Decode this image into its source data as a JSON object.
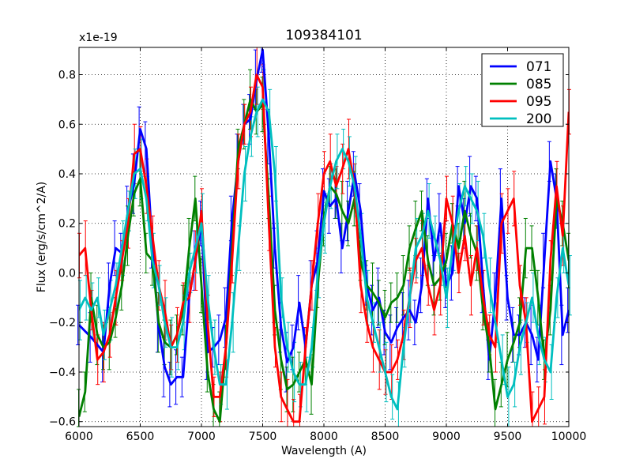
{
  "chart_data": {
    "type": "line",
    "title": "109384101",
    "xlabel": "Wavelength (A)",
    "ylabel": "Flux (erg/s/cm^2/A)",
    "offset_label": "x1e-19",
    "xlim": [
      6000,
      10000
    ],
    "ylim": [
      -0.62,
      0.91
    ],
    "xticks": [
      6000,
      6500,
      7000,
      7500,
      8000,
      8500,
      9000,
      9500,
      10000
    ],
    "yticks": [
      -0.6,
      -0.4,
      -0.2,
      0.0,
      0.2,
      0.4,
      0.6,
      0.8
    ],
    "xtick_labels": [
      "6000",
      "6500",
      "7000",
      "7500",
      "8000",
      "8500",
      "9000",
      "9500",
      "10000"
    ],
    "ytick_labels": [
      "−0.6",
      "−0.4",
      "−0.2",
      "0.0",
      "0.2",
      "0.4",
      "0.6",
      "0.8"
    ],
    "grid": true,
    "legend_position": "top-right",
    "series": [
      {
        "name": "071",
        "color": "#0000ff",
        "x": [
          6000,
          6100,
          6200,
          6250,
          6300,
          6350,
          6400,
          6450,
          6500,
          6550,
          6600,
          6650,
          6700,
          6750,
          6800,
          6850,
          6900,
          6950,
          7000,
          7050,
          7100,
          7150,
          7200,
          7250,
          7300,
          7350,
          7400,
          7450,
          7500,
          7550,
          7600,
          7650,
          7700,
          7750,
          7800,
          7850,
          7900,
          7950,
          8000,
          8050,
          8100,
          8150,
          8200,
          8250,
          8300,
          8350,
          8400,
          8450,
          8500,
          8550,
          8600,
          8650,
          8700,
          8750,
          8800,
          8850,
          8900,
          8950,
          9000,
          9050,
          9100,
          9150,
          9200,
          9250,
          9300,
          9350,
          9400,
          9450,
          9500,
          9550,
          9600,
          9650,
          9700,
          9750,
          9800,
          9850,
          9900,
          9950,
          10000
        ],
        "y": [
          -0.21,
          -0.26,
          -0.32,
          -0.05,
          0.1,
          0.08,
          0.25,
          0.36,
          0.58,
          0.5,
          0.1,
          -0.22,
          -0.38,
          -0.45,
          -0.42,
          -0.42,
          -0.1,
          0.05,
          0.2,
          -0.32,
          -0.3,
          -0.27,
          -0.18,
          0.22,
          0.45,
          0.6,
          0.62,
          0.78,
          0.9,
          0.55,
          0.1,
          -0.22,
          -0.36,
          -0.3,
          -0.12,
          -0.3,
          -0.05,
          0.05,
          0.33,
          0.27,
          0.3,
          0.1,
          0.25,
          0.4,
          0.25,
          -0.05,
          -0.15,
          -0.1,
          -0.24,
          -0.28,
          -0.22,
          -0.18,
          -0.15,
          -0.2,
          -0.05,
          0.3,
          0.05,
          0.2,
          -0.05,
          0.0,
          0.35,
          0.2,
          0.35,
          0.3,
          -0.05,
          -0.35,
          -0.1,
          0.3,
          -0.1,
          -0.25,
          -0.25,
          -0.2,
          -0.25,
          -0.35,
          0.05,
          0.45,
          0.3,
          -0.25,
          -0.15
        ]
      },
      {
        "name": "085",
        "color": "#008000",
        "x": [
          6000,
          6050,
          6100,
          6150,
          6200,
          6250,
          6300,
          6350,
          6400,
          6450,
          6500,
          6550,
          6600,
          6650,
          6700,
          6750,
          6800,
          6850,
          6900,
          6950,
          7000,
          7050,
          7100,
          7150,
          7200,
          7250,
          7300,
          7350,
          7400,
          7450,
          7500,
          7550,
          7600,
          7650,
          7700,
          7750,
          7800,
          7850,
          7900,
          7950,
          8000,
          8050,
          8100,
          8150,
          8200,
          8250,
          8300,
          8350,
          8400,
          8450,
          8500,
          8550,
          8600,
          8650,
          8700,
          8750,
          8800,
          8850,
          8900,
          8950,
          9000,
          9050,
          9100,
          9150,
          9200,
          9250,
          9300,
          9350,
          9400,
          9450,
          9500,
          9550,
          9600,
          9650,
          9700,
          9750,
          9800,
          9850,
          9900,
          9950,
          10000
        ],
        "y": [
          -0.58,
          -0.48,
          -0.1,
          -0.25,
          -0.3,
          -0.28,
          -0.18,
          -0.05,
          0.15,
          0.32,
          0.38,
          0.08,
          0.05,
          -0.2,
          -0.28,
          -0.3,
          -0.25,
          -0.15,
          0.1,
          0.3,
          -0.05,
          -0.4,
          -0.55,
          -0.6,
          -0.3,
          0.1,
          0.5,
          0.6,
          0.7,
          0.65,
          0.68,
          0.3,
          -0.15,
          -0.35,
          -0.47,
          -0.45,
          -0.4,
          -0.35,
          -0.45,
          -0.05,
          0.22,
          0.35,
          0.32,
          0.25,
          0.2,
          0.3,
          0.05,
          -0.05,
          -0.08,
          -0.12,
          -0.18,
          -0.12,
          -0.1,
          -0.05,
          0.1,
          0.18,
          0.25,
          0.05,
          -0.05,
          -0.02,
          0.05,
          0.2,
          0.1,
          0.25,
          0.15,
          0.08,
          -0.15,
          -0.3,
          -0.55,
          -0.45,
          -0.35,
          -0.28,
          -0.2,
          0.1,
          0.1,
          -0.1,
          -0.35,
          -0.15,
          0.3,
          0.2,
          0.05
        ]
      },
      {
        "name": "095",
        "color": "#ff0000",
        "x": [
          6000,
          6050,
          6100,
          6150,
          6200,
          6250,
          6300,
          6350,
          6400,
          6450,
          6500,
          6550,
          6600,
          6650,
          6700,
          6750,
          6800,
          6850,
          6900,
          6950,
          7000,
          7050,
          7100,
          7150,
          7200,
          7250,
          7300,
          7350,
          7400,
          7450,
          7500,
          7550,
          7600,
          7650,
          7700,
          7750,
          7800,
          7850,
          7900,
          7950,
          8000,
          8050,
          8100,
          8150,
          8200,
          8250,
          8300,
          8350,
          8400,
          8450,
          8500,
          8550,
          8600,
          8650,
          8700,
          8750,
          8800,
          8850,
          8900,
          8950,
          9000,
          9050,
          9100,
          9150,
          9200,
          9250,
          9300,
          9350,
          9400,
          9450,
          9500,
          9550,
          9600,
          9650,
          9700,
          9750,
          9800,
          9850,
          9900,
          9950,
          10000
        ],
        "y": [
          0.07,
          0.1,
          -0.15,
          -0.35,
          -0.32,
          -0.25,
          -0.1,
          0.05,
          0.2,
          0.48,
          0.5,
          0.35,
          0.15,
          -0.05,
          -0.15,
          -0.3,
          -0.25,
          -0.12,
          -0.1,
          0.05,
          0.25,
          -0.2,
          -0.5,
          -0.5,
          -0.3,
          0.05,
          0.45,
          0.6,
          0.65,
          0.8,
          0.75,
          0.2,
          -0.3,
          -0.5,
          -0.55,
          -0.6,
          -0.6,
          -0.3,
          -0.05,
          0.2,
          0.4,
          0.45,
          0.35,
          0.42,
          0.5,
          0.35,
          -0.05,
          -0.2,
          -0.3,
          -0.35,
          -0.4,
          -0.4,
          -0.35,
          -0.25,
          -0.1,
          0.05,
          0.1,
          -0.05,
          -0.15,
          -0.05,
          0.3,
          0.2,
          0.0,
          0.15,
          -0.05,
          0.1,
          -0.1,
          -0.25,
          -0.3,
          0.2,
          0.25,
          0.3,
          -0.05,
          -0.2,
          -0.6,
          -0.55,
          -0.5,
          0.05,
          0.35,
          0.15,
          0.65
        ]
      },
      {
        "name": "200",
        "color": "#00bfbf",
        "x": [
          6000,
          6050,
          6100,
          6150,
          6200,
          6250,
          6300,
          6350,
          6400,
          6450,
          6500,
          6550,
          6600,
          6650,
          6700,
          6750,
          6800,
          6850,
          6900,
          6950,
          7000,
          7050,
          7100,
          7150,
          7200,
          7250,
          7300,
          7350,
          7400,
          7450,
          7500,
          7550,
          7600,
          7650,
          7700,
          7750,
          7800,
          7850,
          7900,
          7950,
          8000,
          8050,
          8100,
          8150,
          8200,
          8250,
          8300,
          8350,
          8400,
          8450,
          8500,
          8550,
          8600,
          8650,
          8700,
          8750,
          8800,
          8850,
          8900,
          8950,
          9000,
          9050,
          9100,
          9150,
          9200,
          9250,
          9300,
          9350,
          9400,
          9450,
          9500,
          9550,
          9600,
          9650,
          9700,
          9750,
          9800,
          9850,
          9900,
          9950,
          10000
        ],
        "y": [
          -0.15,
          -0.1,
          -0.15,
          -0.1,
          -0.25,
          -0.15,
          -0.05,
          0.1,
          0.25,
          0.4,
          0.42,
          0.3,
          0.05,
          -0.05,
          -0.2,
          -0.3,
          -0.3,
          -0.2,
          0.0,
          0.1,
          0.2,
          -0.1,
          -0.3,
          -0.45,
          -0.45,
          -0.2,
          0.1,
          0.4,
          0.55,
          0.65,
          0.7,
          0.65,
          0.4,
          -0.1,
          -0.3,
          -0.4,
          -0.45,
          -0.45,
          -0.3,
          0.0,
          0.2,
          0.35,
          0.45,
          0.5,
          0.45,
          0.35,
          0.15,
          -0.1,
          -0.2,
          -0.3,
          -0.4,
          -0.5,
          -0.55,
          -0.3,
          -0.1,
          0.1,
          0.15,
          0.25,
          0.15,
          0.05,
          -0.1,
          0.1,
          0.25,
          0.35,
          0.3,
          0.25,
          0.15,
          -0.05,
          -0.2,
          -0.35,
          -0.5,
          -0.45,
          -0.3,
          -0.2,
          -0.1,
          -0.25,
          -0.35,
          -0.4,
          -0.1,
          0.1,
          -0.05
        ]
      }
    ]
  }
}
